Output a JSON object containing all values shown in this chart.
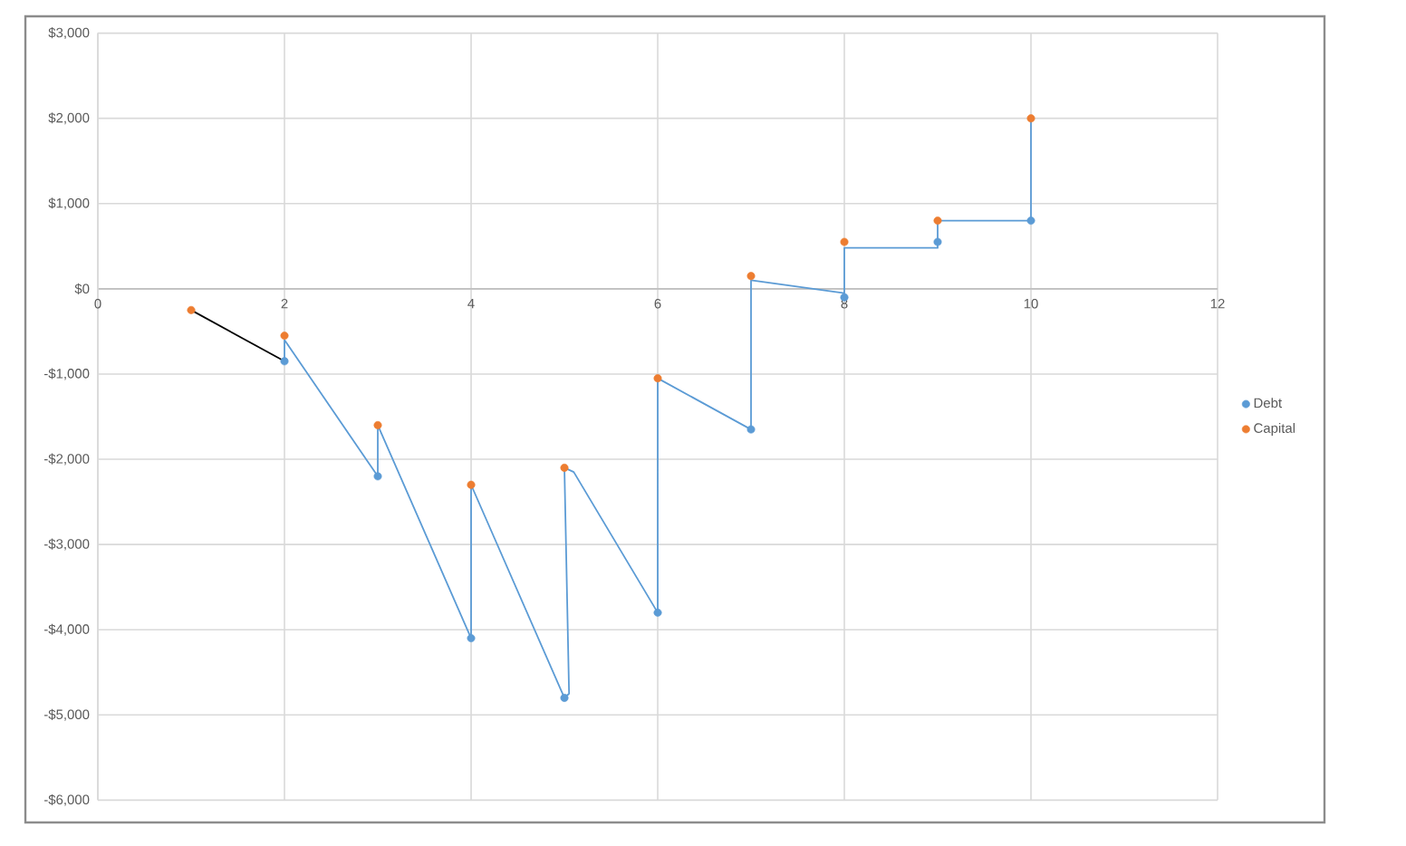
{
  "chart_data": {
    "type": "scatter",
    "xlim": [
      0,
      12
    ],
    "xticks": [
      0,
      2,
      4,
      6,
      8,
      10,
      12
    ],
    "ylim": [
      -6000,
      3000
    ],
    "yticks": [
      {
        "value": -6000,
        "label": "-$6,000"
      },
      {
        "value": -5000,
        "label": "-$5,000"
      },
      {
        "value": -4000,
        "label": "-$4,000"
      },
      {
        "value": -3000,
        "label": "-$3,000"
      },
      {
        "value": -2000,
        "label": "-$2,000"
      },
      {
        "value": -1000,
        "label": "-$1,000"
      },
      {
        "value": 0,
        "label": "$0"
      },
      {
        "value": 1000,
        "label": "$1,000"
      },
      {
        "value": 2000,
        "label": "$2,000"
      },
      {
        "value": 3000,
        "label": "$3,000"
      }
    ],
    "grid": true,
    "legend": "right",
    "series": [
      {
        "type": "line",
        "marker": "none",
        "color": "#5b9bd5",
        "x": [
          2,
          2,
          3,
          3,
          4,
          4,
          5,
          5.05,
          5,
          5.1,
          6,
          6,
          7,
          7,
          8,
          8,
          9,
          9,
          10,
          10
        ],
        "values": [
          -850,
          -600,
          -2200,
          -1600,
          -4100,
          -2300,
          -4800,
          -4750,
          -2100,
          -2150,
          -3800,
          -1050,
          -1650,
          100,
          -50,
          480,
          480,
          800,
          800,
          2000
        ]
      },
      {
        "type": "line",
        "marker": "none",
        "color": "#000000",
        "x": [
          1,
          2
        ],
        "values": [
          -250,
          -850
        ]
      },
      {
        "name": "Debt",
        "marker": "circle",
        "color": "#5b9bd5",
        "x": [
          2,
          3,
          4,
          5,
          6,
          7,
          8,
          9,
          10
        ],
        "values": [
          -850,
          -2200,
          -4100,
          -4800,
          -3800,
          -1650,
          -100,
          550,
          800
        ]
      },
      {
        "name": "Capital",
        "marker": "circle",
        "color": "#ed7d31",
        "x": [
          1,
          2,
          3,
          4,
          5,
          6,
          7,
          8,
          9,
          10
        ],
        "values": [
          -250,
          -550,
          -1600,
          -2300,
          -2100,
          -1050,
          150,
          550,
          800,
          2000
        ]
      }
    ]
  }
}
